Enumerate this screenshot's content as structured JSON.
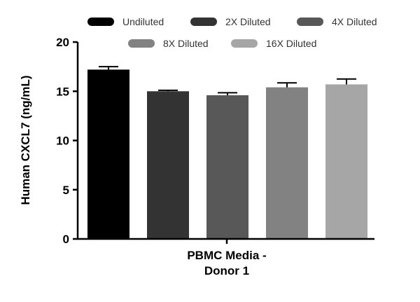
{
  "chart_data": {
    "type": "bar",
    "ylabel": "Human CXCL7 (ng/mL)",
    "category_lines": [
      "PBMC Media -",
      "Donor 1"
    ],
    "ylim": [
      0,
      20
    ],
    "yticks": [
      0,
      5,
      10,
      15,
      20
    ],
    "legend_placement": "top",
    "series": [
      {
        "name": "Undiluted",
        "value": 17.2,
        "error": 0.3,
        "color": "#000000"
      },
      {
        "name": "2X Diluted",
        "value": 15.0,
        "error": 0.1,
        "color": "#333333"
      },
      {
        "name": "4X Diluted",
        "value": 14.6,
        "error": 0.25,
        "color": "#585858"
      },
      {
        "name": "8X Diluted",
        "value": 15.4,
        "error": 0.45,
        "color": "#828282"
      },
      {
        "name": "16X Diluted",
        "value": 15.7,
        "error": 0.55,
        "color": "#a6a6a6"
      }
    ]
  }
}
